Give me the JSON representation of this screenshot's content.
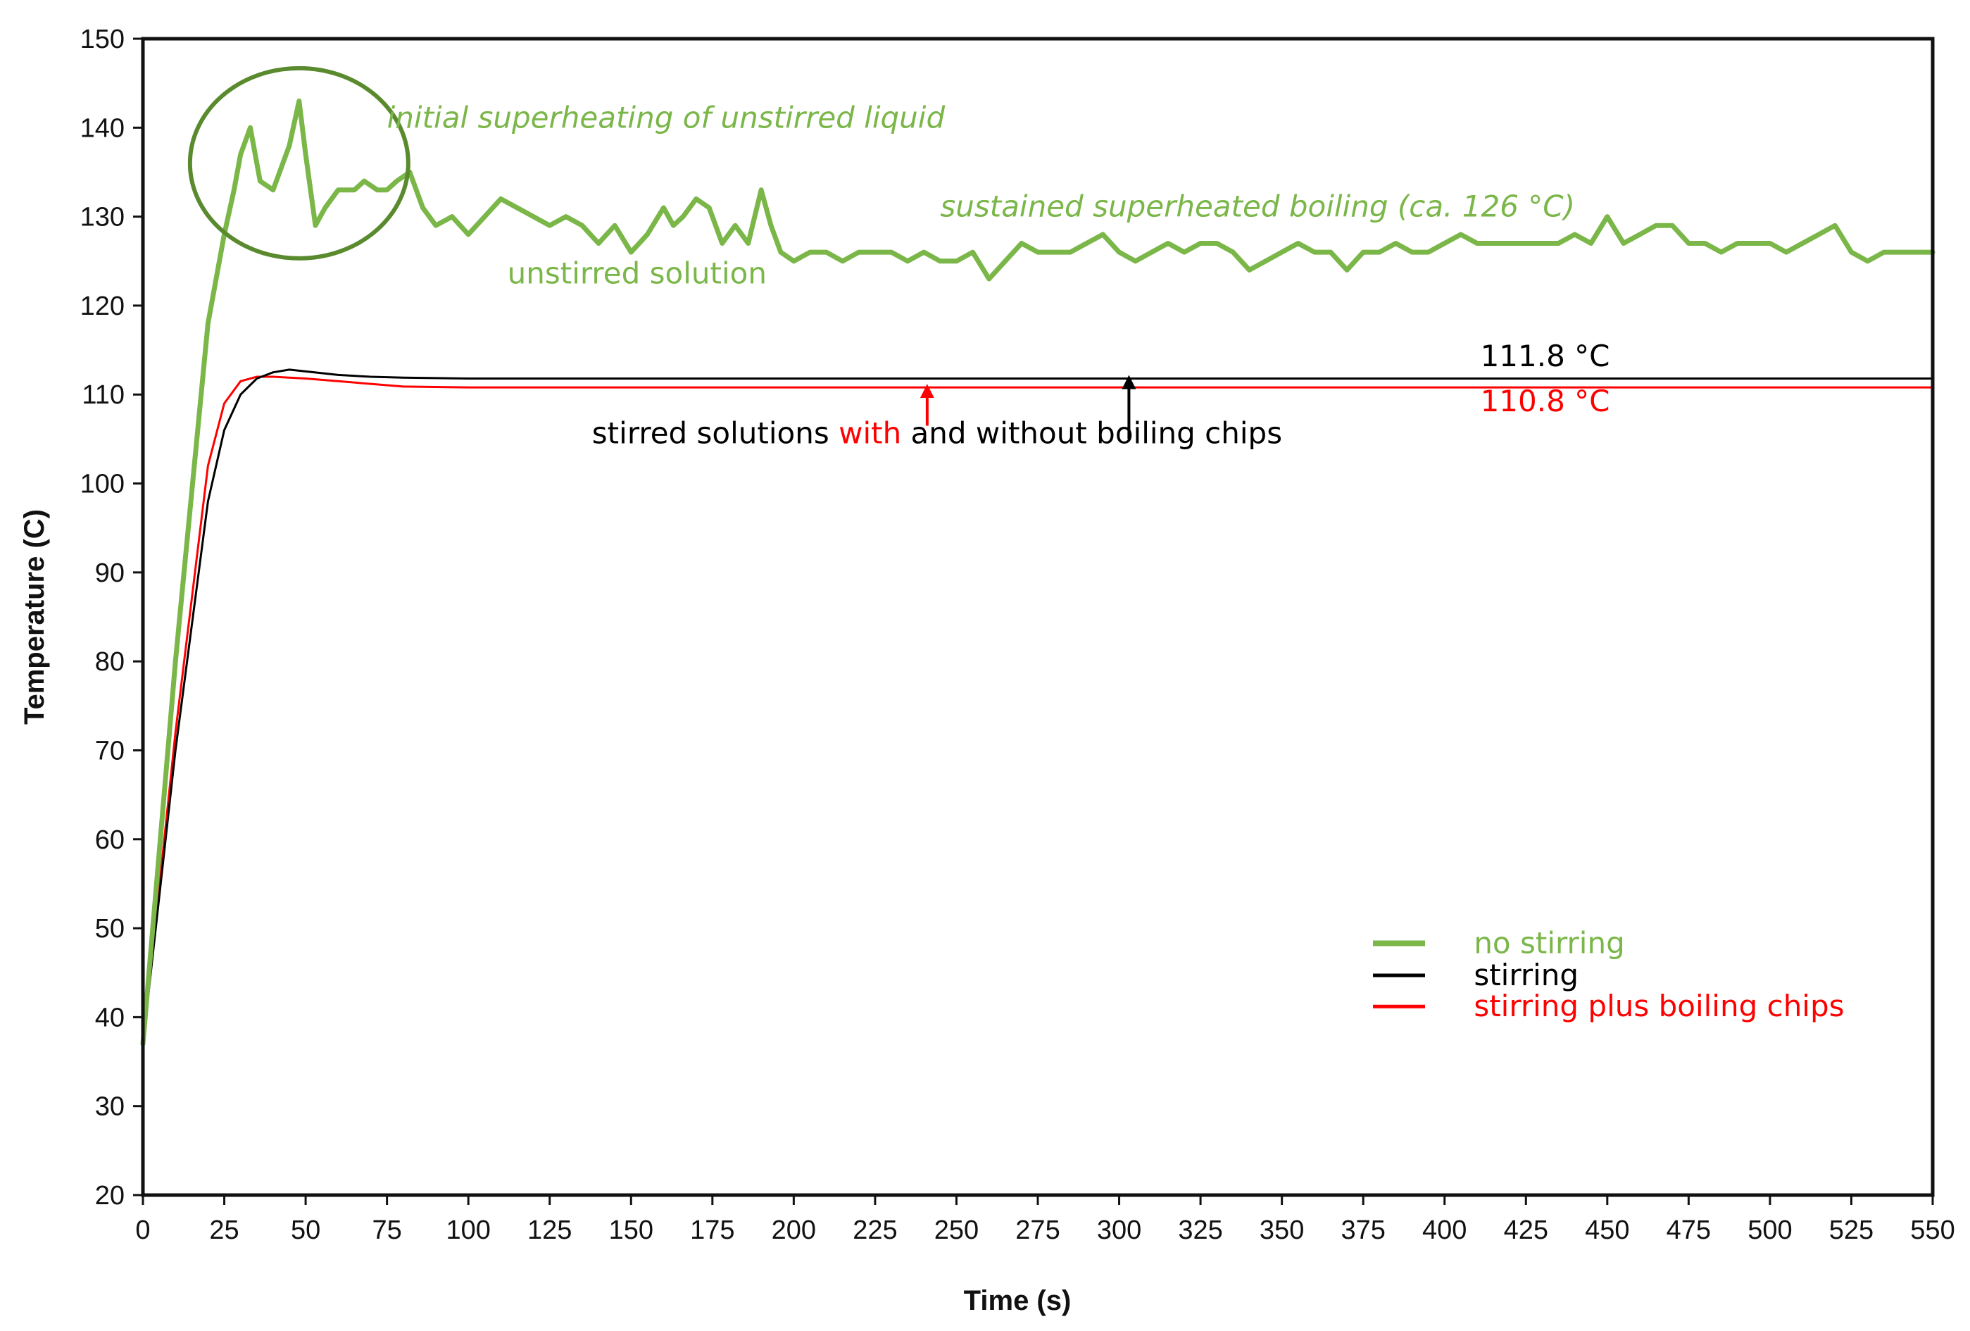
{
  "chart_data": {
    "type": "line",
    "title": "",
    "xlabel": "Time (s)",
    "ylabel": "Temperature (C)",
    "xlim": [
      0,
      550
    ],
    "ylim": [
      20,
      150
    ],
    "xticks": [
      "0",
      "25",
      "50",
      "75",
      "100",
      "125",
      "150",
      "175",
      "200",
      "225",
      "250",
      "275",
      "300",
      "325",
      "350",
      "375",
      "400",
      "425",
      "450",
      "475",
      "500",
      "525",
      "550"
    ],
    "yticks": [
      "20",
      "30",
      "40",
      "50",
      "60",
      "70",
      "80",
      "90",
      "100",
      "110",
      "120",
      "130",
      "140",
      "150"
    ],
    "series": [
      {
        "name": "no stirring",
        "color": "#7ab648",
        "x": [
          0,
          10,
          20,
          25,
          28,
          30,
          33,
          36,
          40,
          45,
          48,
          50,
          53,
          56,
          60,
          65,
          68,
          72,
          75,
          78,
          82,
          86,
          90,
          95,
          100,
          105,
          110,
          115,
          120,
          125,
          130,
          135,
          140,
          145,
          150,
          155,
          160,
          163,
          166,
          170,
          174,
          178,
          182,
          186,
          190,
          193,
          196,
          200,
          205,
          210,
          215,
          220,
          225,
          230,
          235,
          240,
          245,
          250,
          255,
          260,
          265,
          270,
          275,
          280,
          285,
          290,
          295,
          300,
          305,
          310,
          315,
          320,
          325,
          330,
          335,
          340,
          345,
          350,
          355,
          360,
          365,
          370,
          375,
          380,
          385,
          390,
          395,
          400,
          405,
          410,
          415,
          420,
          425,
          430,
          435,
          440,
          445,
          450,
          455,
          460,
          465,
          470,
          475,
          480,
          485,
          490,
          495,
          500,
          505,
          510,
          515,
          520,
          525,
          530,
          535,
          540,
          545,
          550
        ],
        "values": [
          37,
          80,
          118,
          128,
          133,
          137,
          140,
          134,
          133,
          138,
          143,
          137,
          129,
          131,
          133,
          133,
          134,
          133,
          133,
          134,
          135,
          131,
          129,
          130,
          128,
          130,
          132,
          131,
          130,
          129,
          130,
          129,
          127,
          129,
          126,
          128,
          131,
          129,
          130,
          132,
          131,
          127,
          129,
          127,
          133,
          129,
          126,
          125,
          126,
          126,
          125,
          126,
          126,
          126,
          125,
          126,
          125,
          125,
          126,
          123,
          125,
          127,
          126,
          126,
          126,
          127,
          128,
          126,
          125,
          126,
          127,
          126,
          127,
          127,
          126,
          124,
          125,
          126,
          127,
          126,
          126,
          124,
          126,
          126,
          127,
          126,
          126,
          127,
          128,
          127,
          127,
          127,
          127,
          127,
          127,
          128,
          127,
          130,
          127,
          128,
          129,
          129,
          127,
          127,
          126,
          127,
          127,
          127,
          126,
          127,
          128,
          129,
          126,
          125,
          126,
          126,
          126,
          126
        ]
      },
      {
        "name": "stirring",
        "color": "#000000",
        "x": [
          0,
          10,
          20,
          25,
          30,
          35,
          40,
          45,
          50,
          55,
          60,
          70,
          80,
          100,
          150,
          200,
          250,
          300,
          350,
          400,
          450,
          500,
          550
        ],
        "values": [
          37,
          70,
          98,
          106,
          110,
          111.8,
          112.5,
          112.8,
          112.6,
          112.4,
          112.2,
          112,
          111.9,
          111.8,
          111.8,
          111.8,
          111.8,
          111.8,
          111.8,
          111.8,
          111.8,
          111.8,
          111.8
        ]
      },
      {
        "name": "stirring plus boiling chips",
        "color": "#ff0000",
        "x": [
          0,
          10,
          20,
          25,
          30,
          35,
          40,
          50,
          60,
          70,
          80,
          100,
          150,
          200,
          250,
          300,
          350,
          400,
          450,
          500,
          550
        ],
        "values": [
          37,
          72,
          102,
          109,
          111.5,
          112,
          112,
          111.8,
          111.5,
          111.2,
          110.9,
          110.8,
          110.8,
          110.8,
          110.8,
          110.8,
          110.8,
          110.8,
          110.8,
          110.8,
          110.8
        ]
      }
    ],
    "annotations": [
      {
        "text": "initial superheating of unstirred liquid",
        "x": 75,
        "y": 140,
        "color": "#7ab648",
        "italic": true
      },
      {
        "text": "sustained superheated boiling (ca. 126 °C)",
        "x": 245,
        "y": 130,
        "color": "#7ab648",
        "italic": true
      },
      {
        "text": "unstirred solution",
        "x": 112,
        "y": 122.5,
        "color": "#7ab648",
        "italic": false
      },
      {
        "text": "111.8 °C",
        "x": 411,
        "y": 113.2,
        "color": "#000000",
        "italic": false
      },
      {
        "text": "110.8 °C",
        "x": 411,
        "y": 108.1,
        "color": "#ff0000",
        "italic": false
      }
    ],
    "stirred_note": {
      "part1": "stirred solutions ",
      "part2": "with",
      "part3": " and without",
      "part4": " boiling chips",
      "with_color": "#ff0000",
      "x": 138,
      "y": 104.5,
      "arrow_with_x": 241,
      "arrow_without_x": 303
    },
    "legend": {
      "position": "lower-right",
      "items": [
        {
          "label": "no stirring",
          "color": "#7ab648"
        },
        {
          "label": "stirring",
          "color": "#000000"
        },
        {
          "label": "stirring plus boiling chips",
          "color": "#ff0000"
        }
      ]
    }
  }
}
